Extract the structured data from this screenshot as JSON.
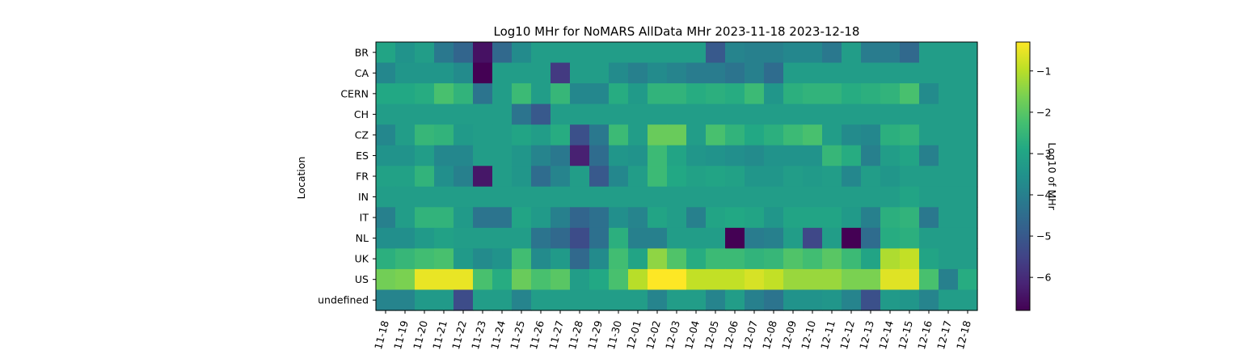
{
  "chart_data": {
    "type": "heatmap",
    "title": "Log10 MHr for NoMARS AllData MHr 2023-11-18 2023-12-18",
    "xlabel": "",
    "ylabel": "Location",
    "colorbar_label": "Log10 of MHr",
    "colormap": "viridis",
    "vmin": -6.8,
    "vmax": -0.3,
    "colorbar_ticks": [
      -1,
      -2,
      -3,
      -4,
      -5,
      -6
    ],
    "colorbar_tick_labels": [
      "−1",
      "−2",
      "−3",
      "−4",
      "−5",
      "−6"
    ],
    "x": [
      "11-18",
      "11-19",
      "11-20",
      "11-21",
      "11-22",
      "11-23",
      "11-24",
      "11-25",
      "11-26",
      "11-27",
      "11-28",
      "11-29",
      "11-30",
      "12-01",
      "12-02",
      "12-03",
      "12-04",
      "12-05",
      "12-06",
      "12-07",
      "12-08",
      "12-09",
      "12-10",
      "12-11",
      "12-12",
      "12-13",
      "12-14",
      "12-15",
      "12-16",
      "12-17",
      "12-18"
    ],
    "y": [
      "BR",
      "CA",
      "CERN",
      "CH",
      "CZ",
      "ES",
      "FR",
      "IN",
      "IT",
      "NL",
      "UK",
      "US",
      "undefined"
    ],
    "z": [
      [
        -3.0,
        -3.5,
        -3.2,
        -4.2,
        -4.7,
        -6.5,
        -4.6,
        -3.7,
        -3.2,
        -3.2,
        -3.2,
        -3.2,
        -3.2,
        -3.2,
        -3.2,
        -3.2,
        -3.2,
        -5.0,
        -3.9,
        -4.0,
        -4.0,
        -3.8,
        -3.8,
        -4.2,
        -3.2,
        -4.1,
        -4.1,
        -4.6,
        -3.2,
        -3.2,
        -3.2
      ],
      [
        -3.8,
        -3.4,
        -3.4,
        -3.4,
        -3.7,
        -6.8,
        -3.2,
        -3.2,
        -3.2,
        -5.7,
        -3.2,
        -3.2,
        -3.7,
        -4.0,
        -3.7,
        -3.9,
        -4.1,
        -4.1,
        -4.3,
        -4.0,
        -4.5,
        -3.2,
        -3.2,
        -3.2,
        -3.2,
        -3.2,
        -3.2,
        -3.2,
        -3.2,
        -3.2,
        -3.2
      ],
      [
        -2.9,
        -2.9,
        -2.8,
        -2.2,
        -2.6,
        -4.3,
        -3.2,
        -2.4,
        -3.2,
        -2.5,
        -3.8,
        -3.8,
        -2.8,
        -3.3,
        -2.6,
        -2.6,
        -2.8,
        -2.7,
        -2.8,
        -2.4,
        -3.4,
        -2.7,
        -2.6,
        -2.6,
        -2.8,
        -2.7,
        -2.6,
        -2.2,
        -3.7,
        -3.2,
        -3.2
      ],
      [
        -3.2,
        -3.2,
        -3.2,
        -3.2,
        -3.2,
        -3.2,
        -3.2,
        -4.3,
        -5.0,
        -3.2,
        -3.2,
        -3.2,
        -3.2,
        -3.2,
        -3.2,
        -3.2,
        -3.2,
        -3.2,
        -3.2,
        -3.2,
        -3.2,
        -3.2,
        -3.2,
        -3.2,
        -3.2,
        -3.2,
        -3.2,
        -3.2,
        -3.2,
        -3.2,
        -3.2
      ],
      [
        -3.8,
        -3.2,
        -2.5,
        -2.6,
        -3.3,
        -3.2,
        -3.2,
        -3.0,
        -3.2,
        -2.8,
        -5.2,
        -4.2,
        -2.4,
        -3.2,
        -1.8,
        -1.8,
        -3.2,
        -2.2,
        -2.6,
        -2.9,
        -2.7,
        -2.4,
        -2.2,
        -3.2,
        -3.7,
        -3.8,
        -2.7,
        -2.6,
        -3.2,
        -3.2,
        -3.2
      ],
      [
        -3.5,
        -3.5,
        -3.2,
        -3.8,
        -3.8,
        -3.2,
        -3.2,
        -3.4,
        -3.9,
        -4.2,
        -6.2,
        -4.5,
        -3.4,
        -3.5,
        -2.4,
        -3.0,
        -3.4,
        -3.5,
        -3.6,
        -3.7,
        -3.5,
        -3.5,
        -3.5,
        -2.5,
        -2.8,
        -4.0,
        -3.2,
        -3.0,
        -4.0,
        -3.2,
        -3.2
      ],
      [
        -3.1,
        -3.1,
        -2.6,
        -3.6,
        -4.0,
        -6.4,
        -3.2,
        -3.4,
        -4.5,
        -3.9,
        -3.2,
        -5.0,
        -3.8,
        -3.2,
        -2.4,
        -2.9,
        -3.1,
        -3.0,
        -3.1,
        -3.4,
        -3.4,
        -3.2,
        -3.3,
        -3.2,
        -3.8,
        -3.2,
        -3.4,
        -3.2,
        -3.2,
        -3.2,
        -3.2
      ],
      [
        -3.2,
        -3.2,
        -3.2,
        -3.2,
        -3.2,
        -3.2,
        -3.2,
        -3.2,
        -3.2,
        -3.2,
        -3.2,
        -3.2,
        -3.2,
        -3.2,
        -3.2,
        -3.2,
        -3.2,
        -3.2,
        -3.2,
        -3.2,
        -3.2,
        -3.2,
        -3.2,
        -3.2,
        -3.2,
        -3.2,
        -3.2,
        -3.0,
        -3.2,
        -3.2,
        -3.2
      ],
      [
        -4.0,
        -3.2,
        -2.6,
        -2.6,
        -3.3,
        -4.3,
        -4.3,
        -3.0,
        -3.3,
        -4.0,
        -4.7,
        -4.4,
        -3.6,
        -3.9,
        -3.0,
        -3.2,
        -4.0,
        -3.0,
        -2.9,
        -3.0,
        -3.4,
        -3.0,
        -3.0,
        -3.0,
        -3.3,
        -4.0,
        -2.7,
        -2.6,
        -4.2,
        -3.2,
        -3.2
      ],
      [
        -3.6,
        -3.6,
        -3.3,
        -3.1,
        -3.2,
        -3.2,
        -3.2,
        -3.2,
        -4.3,
        -4.6,
        -5.3,
        -4.4,
        -2.7,
        -4.0,
        -4.0,
        -3.2,
        -3.2,
        -3.2,
        -6.8,
        -4.1,
        -4.0,
        -3.2,
        -5.4,
        -3.2,
        -6.8,
        -4.5,
        -2.8,
        -2.7,
        -3.2,
        -3.2,
        -3.2
      ],
      [
        -2.7,
        -2.5,
        -2.3,
        -2.2,
        -3.3,
        -3.7,
        -3.5,
        -2.3,
        -3.7,
        -3.3,
        -4.6,
        -3.7,
        -2.3,
        -3.0,
        -1.4,
        -2.1,
        -2.8,
        -2.4,
        -2.4,
        -2.6,
        -2.5,
        -2.1,
        -2.3,
        -2.0,
        -2.4,
        -3.0,
        -1.1,
        -0.9,
        -3.0,
        -3.2,
        -3.2
      ],
      [
        -1.7,
        -1.6,
        -0.5,
        -0.5,
        -0.5,
        -2.2,
        -2.8,
        -1.8,
        -2.2,
        -2.0,
        -3.2,
        -2.9,
        -2.2,
        -1.0,
        -0.3,
        -0.3,
        -0.9,
        -0.9,
        -0.9,
        -0.7,
        -0.9,
        -1.3,
        -1.3,
        -1.3,
        -1.6,
        -1.6,
        -0.6,
        -0.6,
        -2.2,
        -4.0,
        -2.8
      ],
      [
        -3.9,
        -3.9,
        -3.3,
        -3.3,
        -5.3,
        -3.2,
        -3.2,
        -3.9,
        -3.2,
        -3.2,
        -3.2,
        -3.2,
        -3.2,
        -3.2,
        -3.9,
        -3.2,
        -3.2,
        -3.9,
        -3.2,
        -4.0,
        -4.3,
        -3.5,
        -3.5,
        -3.4,
        -3.9,
        -5.2,
        -3.3,
        -3.4,
        -3.9,
        -3.2,
        -3.2
      ]
    ]
  }
}
